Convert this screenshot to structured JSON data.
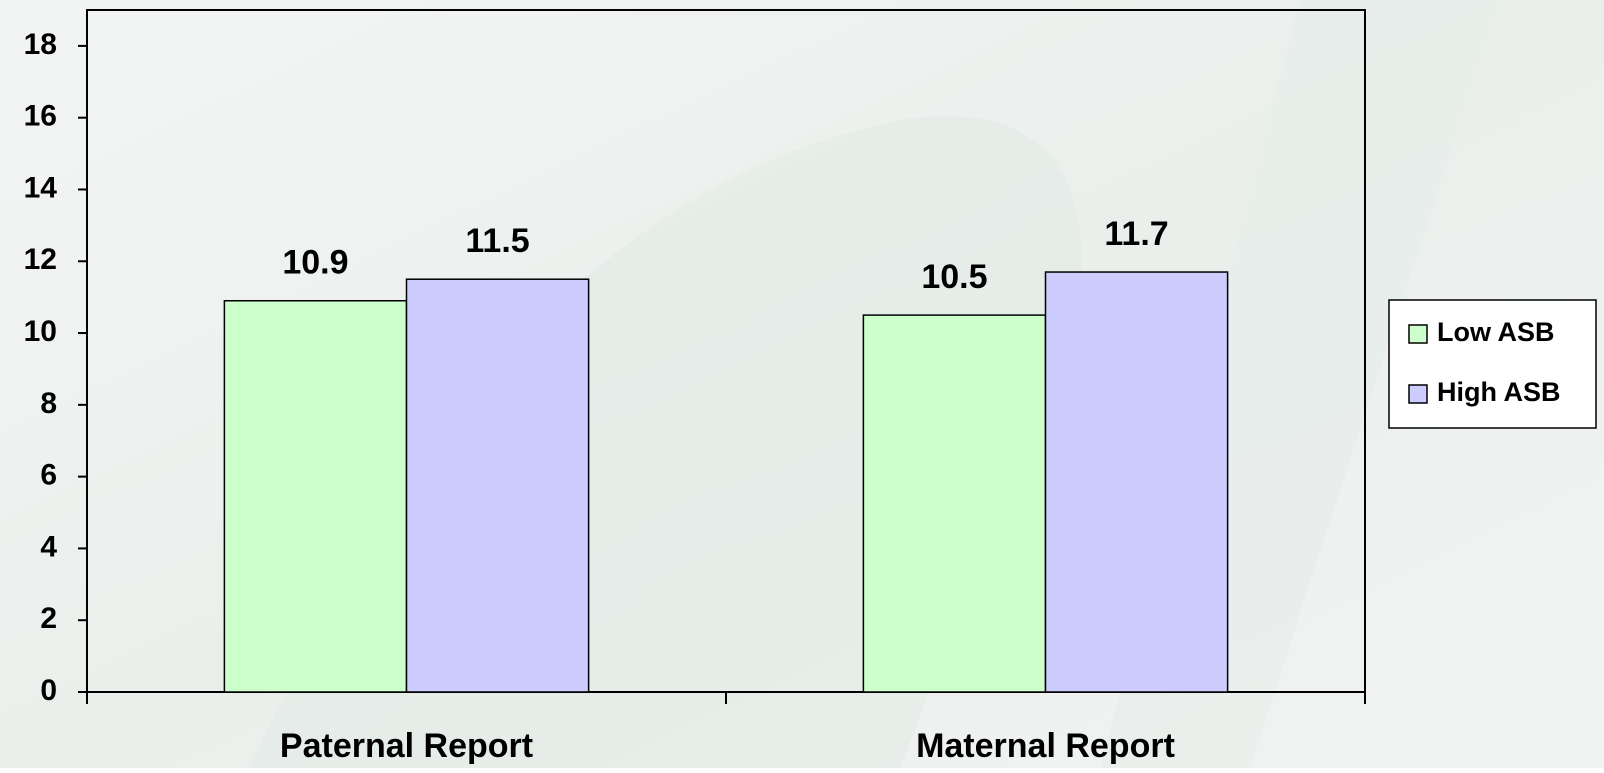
{
  "chart_data": {
    "type": "bar",
    "categories": [
      "Paternal Report",
      "Maternal Report"
    ],
    "series": [
      {
        "name": "Low ASB",
        "color": "#ccffcc",
        "values": [
          10.9,
          10.5
        ]
      },
      {
        "name": "High ASB",
        "color": "#ccccff",
        "values": [
          11.5,
          11.7
        ]
      }
    ],
    "ylim": [
      0,
      19
    ],
    "yticks": [
      0,
      2,
      4,
      6,
      8,
      10,
      12,
      14,
      16,
      18
    ],
    "legend": "right"
  }
}
